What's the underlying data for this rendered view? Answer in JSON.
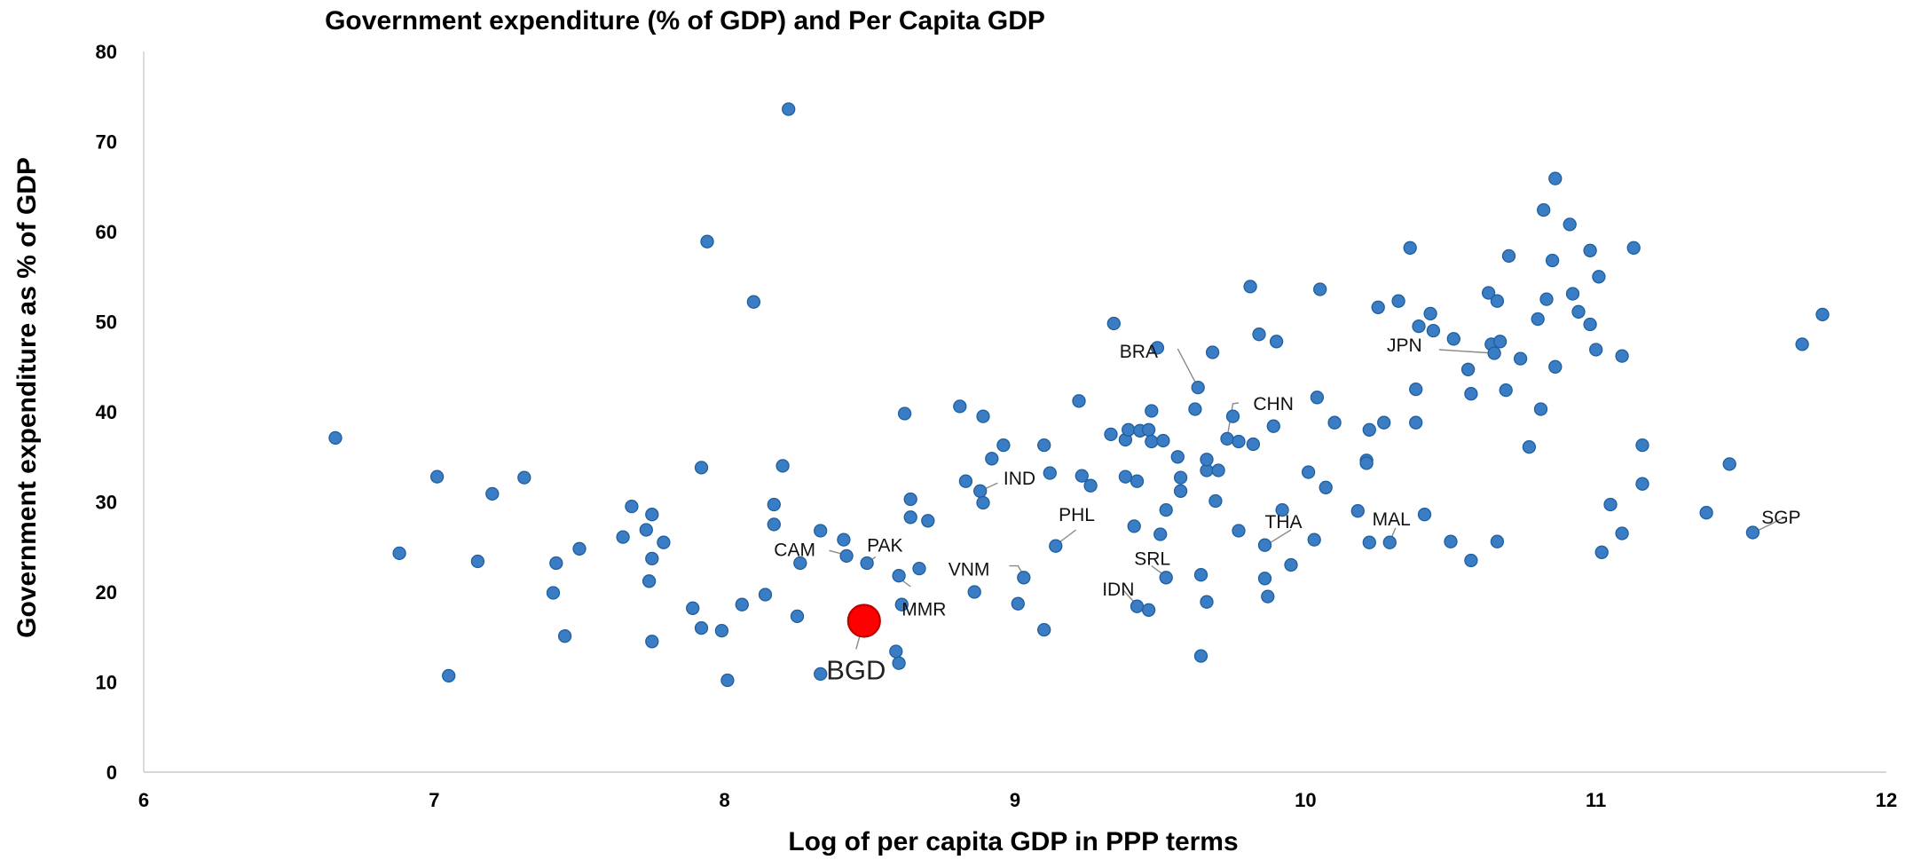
{
  "chart_data": {
    "type": "scatter",
    "title": "Government expenditure (% of GDP) and Per Capita GDP",
    "xlabel": "Log of per capita GDP in PPP terms",
    "ylabel": "Government expenditure as % of GDP",
    "xlim": [
      6,
      12
    ],
    "ylim": [
      0,
      80
    ],
    "xticks": [
      "6",
      "7",
      "8",
      "9",
      "10",
      "11",
      "12"
    ],
    "yticks": [
      "0",
      "10",
      "20",
      "30",
      "40",
      "50",
      "60",
      "70",
      "80"
    ],
    "grid": false,
    "legend": "none",
    "colors": {
      "point": "#3a7dc4",
      "point_edge": "#1f5f9e",
      "highlight": "#ff0000",
      "highlight_edge": "#c00000"
    },
    "points": [
      [
        6.66,
        37.1
      ],
      [
        6.88,
        24.3
      ],
      [
        7.01,
        32.8
      ],
      [
        7.05,
        10.7
      ],
      [
        7.15,
        23.4
      ],
      [
        7.2,
        30.9
      ],
      [
        7.31,
        32.7
      ],
      [
        7.41,
        19.9
      ],
      [
        7.42,
        23.2
      ],
      [
        7.45,
        15.1
      ],
      [
        7.5,
        24.8
      ],
      [
        7.65,
        26.1
      ],
      [
        7.68,
        29.5
      ],
      [
        7.73,
        26.9
      ],
      [
        7.74,
        21.2
      ],
      [
        7.75,
        14.5
      ],
      [
        7.75,
        28.6
      ],
      [
        7.75,
        23.7
      ],
      [
        7.79,
        25.5
      ],
      [
        7.89,
        18.2
      ],
      [
        7.92,
        16.0
      ],
      [
        7.92,
        33.8
      ],
      [
        7.94,
        58.9
      ],
      [
        7.99,
        15.7
      ],
      [
        8.01,
        10.2
      ],
      [
        8.06,
        18.6
      ],
      [
        8.1,
        52.2
      ],
      [
        8.14,
        19.7
      ],
      [
        8.17,
        29.7
      ],
      [
        8.17,
        27.5
      ],
      [
        8.2,
        34.0
      ],
      [
        8.22,
        73.6
      ],
      [
        8.25,
        17.3
      ],
      [
        8.26,
        23.2
      ],
      [
        8.33,
        26.8
      ],
      [
        8.33,
        10.9
      ],
      [
        8.41,
        25.8
      ],
      [
        8.42,
        24.0
      ],
      [
        8.49,
        23.2
      ],
      [
        8.6,
        21.8
      ],
      [
        8.61,
        18.6
      ],
      [
        8.62,
        39.8
      ],
      [
        8.64,
        30.3
      ],
      [
        8.64,
        28.3
      ],
      [
        8.67,
        22.6
      ],
      [
        8.7,
        27.9
      ],
      [
        8.59,
        13.4
      ],
      [
        8.6,
        12.1
      ],
      [
        8.81,
        40.6
      ],
      [
        8.83,
        32.3
      ],
      [
        8.86,
        20.0
      ],
      [
        8.88,
        31.2
      ],
      [
        8.89,
        39.5
      ],
      [
        8.89,
        29.9
      ],
      [
        8.92,
        34.8
      ],
      [
        8.96,
        36.3
      ],
      [
        9.01,
        18.7
      ],
      [
        9.03,
        21.6
      ],
      [
        9.1,
        15.8
      ],
      [
        9.1,
        36.3
      ],
      [
        9.12,
        33.2
      ],
      [
        9.14,
        25.1
      ],
      [
        9.22,
        41.2
      ],
      [
        9.23,
        32.9
      ],
      [
        9.26,
        31.8
      ],
      [
        9.33,
        37.5
      ],
      [
        9.34,
        49.8
      ],
      [
        9.38,
        36.9
      ],
      [
        9.38,
        32.8
      ],
      [
        9.39,
        38.0
      ],
      [
        9.41,
        27.3
      ],
      [
        9.42,
        32.3
      ],
      [
        9.42,
        18.4
      ],
      [
        9.43,
        37.9
      ],
      [
        9.46,
        18.0
      ],
      [
        9.46,
        38.0
      ],
      [
        9.47,
        40.1
      ],
      [
        9.47,
        36.7
      ],
      [
        9.49,
        47.1
      ],
      [
        9.5,
        26.4
      ],
      [
        9.51,
        36.8
      ],
      [
        9.52,
        29.1
      ],
      [
        9.52,
        21.6
      ],
      [
        9.56,
        35.0
      ],
      [
        9.57,
        31.2
      ],
      [
        9.57,
        32.7
      ],
      [
        9.62,
        40.3
      ],
      [
        9.63,
        42.7
      ],
      [
        9.64,
        12.9
      ],
      [
        9.64,
        21.9
      ],
      [
        9.66,
        18.9
      ],
      [
        9.66,
        33.5
      ],
      [
        9.66,
        34.7
      ],
      [
        9.68,
        46.6
      ],
      [
        9.69,
        30.1
      ],
      [
        9.7,
        33.5
      ],
      [
        9.73,
        37.0
      ],
      [
        9.75,
        39.5
      ],
      [
        9.77,
        26.8
      ],
      [
        9.77,
        36.7
      ],
      [
        9.81,
        53.9
      ],
      [
        9.82,
        36.4
      ],
      [
        9.84,
        48.6
      ],
      [
        9.86,
        25.2
      ],
      [
        9.86,
        21.5
      ],
      [
        9.87,
        19.5
      ],
      [
        9.89,
        38.4
      ],
      [
        9.9,
        47.8
      ],
      [
        9.92,
        29.1
      ],
      [
        9.95,
        23.0
      ],
      [
        10.01,
        33.3
      ],
      [
        10.03,
        25.8
      ],
      [
        10.04,
        41.6
      ],
      [
        10.05,
        53.6
      ],
      [
        10.07,
        31.6
      ],
      [
        10.1,
        38.8
      ],
      [
        10.18,
        29.0
      ],
      [
        10.21,
        34.6
      ],
      [
        10.21,
        34.3
      ],
      [
        10.22,
        38.0
      ],
      [
        10.22,
        25.5
      ],
      [
        10.25,
        51.6
      ],
      [
        10.27,
        38.8
      ],
      [
        10.29,
        25.5
      ],
      [
        10.32,
        52.3
      ],
      [
        10.36,
        58.2
      ],
      [
        10.38,
        42.5
      ],
      [
        10.38,
        38.8
      ],
      [
        10.39,
        49.5
      ],
      [
        10.41,
        28.6
      ],
      [
        10.43,
        50.9
      ],
      [
        10.44,
        49.0
      ],
      [
        10.5,
        25.6
      ],
      [
        10.51,
        48.1
      ],
      [
        10.56,
        44.7
      ],
      [
        10.57,
        42.0
      ],
      [
        10.57,
        23.5
      ],
      [
        10.63,
        53.2
      ],
      [
        10.64,
        47.5
      ],
      [
        10.65,
        46.5
      ],
      [
        10.66,
        52.3
      ],
      [
        10.66,
        25.6
      ],
      [
        10.67,
        47.8
      ],
      [
        10.69,
        42.4
      ],
      [
        10.7,
        57.3
      ],
      [
        10.74,
        45.9
      ],
      [
        10.77,
        36.1
      ],
      [
        10.8,
        50.3
      ],
      [
        10.81,
        40.3
      ],
      [
        10.82,
        62.4
      ],
      [
        10.83,
        52.5
      ],
      [
        10.85,
        56.8
      ],
      [
        10.86,
        65.9
      ],
      [
        10.86,
        45.0
      ],
      [
        10.91,
        60.8
      ],
      [
        10.92,
        53.1
      ],
      [
        10.94,
        51.1
      ],
      [
        10.98,
        49.7
      ],
      [
        10.98,
        57.9
      ],
      [
        11.0,
        46.9
      ],
      [
        11.01,
        55.0
      ],
      [
        11.02,
        24.4
      ],
      [
        11.05,
        29.7
      ],
      [
        11.09,
        26.5
      ],
      [
        11.09,
        46.2
      ],
      [
        11.13,
        58.2
      ],
      [
        11.16,
        32.0
      ],
      [
        11.16,
        36.3
      ],
      [
        11.38,
        28.8
      ],
      [
        11.46,
        34.2
      ],
      [
        11.54,
        26.6
      ],
      [
        11.71,
        47.5
      ],
      [
        11.78,
        50.8
      ]
    ],
    "highlight": {
      "label": "BGD",
      "x": 8.48,
      "y": 16.8
    },
    "annotations": [
      {
        "label": "BRA",
        "tx": 9.36,
        "ty": 46.0,
        "anchor": "start",
        "path": [
          [
            9.56,
            47.0
          ],
          [
            9.63,
            42.7
          ]
        ]
      },
      {
        "label": "JPN",
        "tx": 10.28,
        "ty": 46.7,
        "anchor": "start",
        "path": [
          [
            10.46,
            46.9
          ],
          [
            10.65,
            46.5
          ]
        ]
      },
      {
        "label": "CHN",
        "tx": 9.82,
        "ty": 40.2,
        "anchor": "start",
        "path": [
          [
            9.77,
            41.0
          ],
          [
            9.75,
            40.9
          ],
          [
            9.73,
            37.1
          ]
        ]
      },
      {
        "label": "IND",
        "tx": 8.96,
        "ty": 31.9,
        "anchor": "start",
        "path": [
          [
            8.94,
            32.1
          ],
          [
            8.88,
            31.2
          ]
        ]
      },
      {
        "label": "PHL",
        "tx": 9.15,
        "ty": 27.9,
        "anchor": "start",
        "path": [
          [
            9.21,
            26.9
          ],
          [
            9.14,
            25.2
          ]
        ]
      },
      {
        "label": "THA",
        "tx": 9.86,
        "ty": 27.1,
        "anchor": "start",
        "path": [
          [
            9.95,
            26.9
          ],
          [
            9.87,
            25.3
          ]
        ]
      },
      {
        "label": "MAL",
        "tx": 10.23,
        "ty": 27.4,
        "anchor": "start",
        "path": [
          [
            10.31,
            27.1
          ],
          [
            10.29,
            25.6
          ]
        ]
      },
      {
        "label": "SGP",
        "tx": 11.57,
        "ty": 27.6,
        "anchor": "start",
        "path": [
          [
            11.65,
            28.3
          ],
          [
            11.55,
            26.7
          ]
        ]
      },
      {
        "label": "CAM",
        "tx": 8.17,
        "ty": 24.0,
        "anchor": "start",
        "path": [
          [
            8.36,
            24.6
          ],
          [
            8.42,
            24.1
          ]
        ]
      },
      {
        "label": "PAK",
        "tx": 8.49,
        "ty": 24.5,
        "anchor": "start",
        "path": [
          [
            8.52,
            23.9
          ],
          [
            8.49,
            23.2
          ]
        ]
      },
      {
        "label": "VNM",
        "tx": 8.77,
        "ty": 21.8,
        "anchor": "start",
        "path": [
          [
            8.98,
            22.9
          ],
          [
            9.01,
            22.9
          ],
          [
            9.03,
            21.8
          ]
        ]
      },
      {
        "label": "SRL",
        "tx": 9.41,
        "ty": 23.0,
        "anchor": "start",
        "path": [
          [
            9.47,
            22.9
          ],
          [
            9.52,
            21.7
          ]
        ]
      },
      {
        "label": "MMR",
        "tx": 8.61,
        "ty": 17.4,
        "anchor": "start",
        "path": [
          [
            8.64,
            20.6
          ],
          [
            8.59,
            21.8
          ]
        ]
      },
      {
        "label": "IDN",
        "tx": 9.3,
        "ty": 19.6,
        "anchor": "start",
        "path": [
          [
            9.37,
            20.3
          ],
          [
            9.42,
            18.5
          ]
        ]
      }
    ]
  }
}
